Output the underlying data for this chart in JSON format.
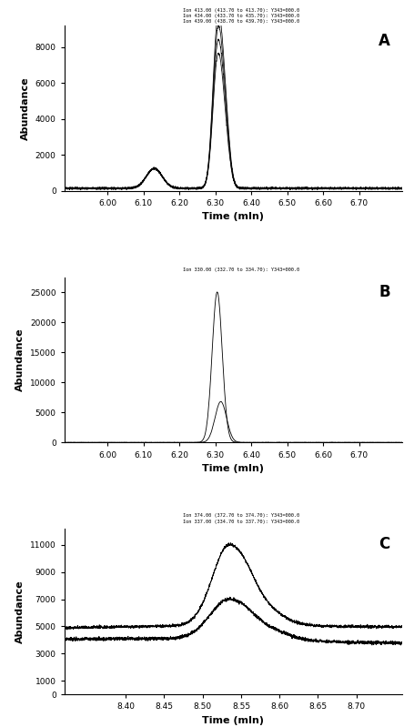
{
  "panel_A": {
    "label": "A",
    "xlabel": "Time (mIn)",
    "ylabel": "Abundance",
    "xticks": [
      6.0,
      6.1,
      6.2,
      6.3,
      6.4,
      6.5,
      6.6,
      6.7
    ],
    "yticks": [
      0,
      2000,
      4000,
      6000,
      8000
    ],
    "xlim": [
      5.88,
      6.82
    ],
    "ylim": [
      0,
      9200
    ],
    "ann_line1": "Ion 413.00 (413.70 to 413.70): Y343=000.0",
    "ann_line2": "Ion 434.00 (433.70 to 435.70): Y343=000.0",
    "ann_line3": "Ion 439.00 (438.70 to 439.70): Y343=000.0"
  },
  "panel_B": {
    "label": "B",
    "xlabel": "Time (mIn)",
    "ylabel": "Abundance",
    "xticks": [
      6.0,
      6.1,
      6.2,
      6.3,
      6.4,
      6.5,
      6.6,
      6.7
    ],
    "yticks": [
      0,
      5000,
      10000,
      15000,
      20000,
      25000
    ],
    "xlim": [
      5.88,
      6.82
    ],
    "ylim": [
      0,
      27500
    ],
    "ann_line1": "Ion 330.00 (332.70 to 334.70): Y343=000.0"
  },
  "panel_C": {
    "label": "C",
    "xlabel": "Time (mIn)",
    "ylabel": "Abundance",
    "xticks": [
      8.4,
      8.45,
      8.5,
      8.55,
      8.6,
      8.65,
      8.7
    ],
    "yticks": [
      0,
      1000,
      3000,
      5000,
      7000,
      9000,
      11000
    ],
    "xlim": [
      8.32,
      8.76
    ],
    "ylim": [
      0,
      12200
    ],
    "ann_line1": "Ion 374.00 (372.70 to 374.70): Y343=000.0",
    "ann_line2": "Ion 337.00 (334.70 to 337.70): Y343=000.0"
  }
}
